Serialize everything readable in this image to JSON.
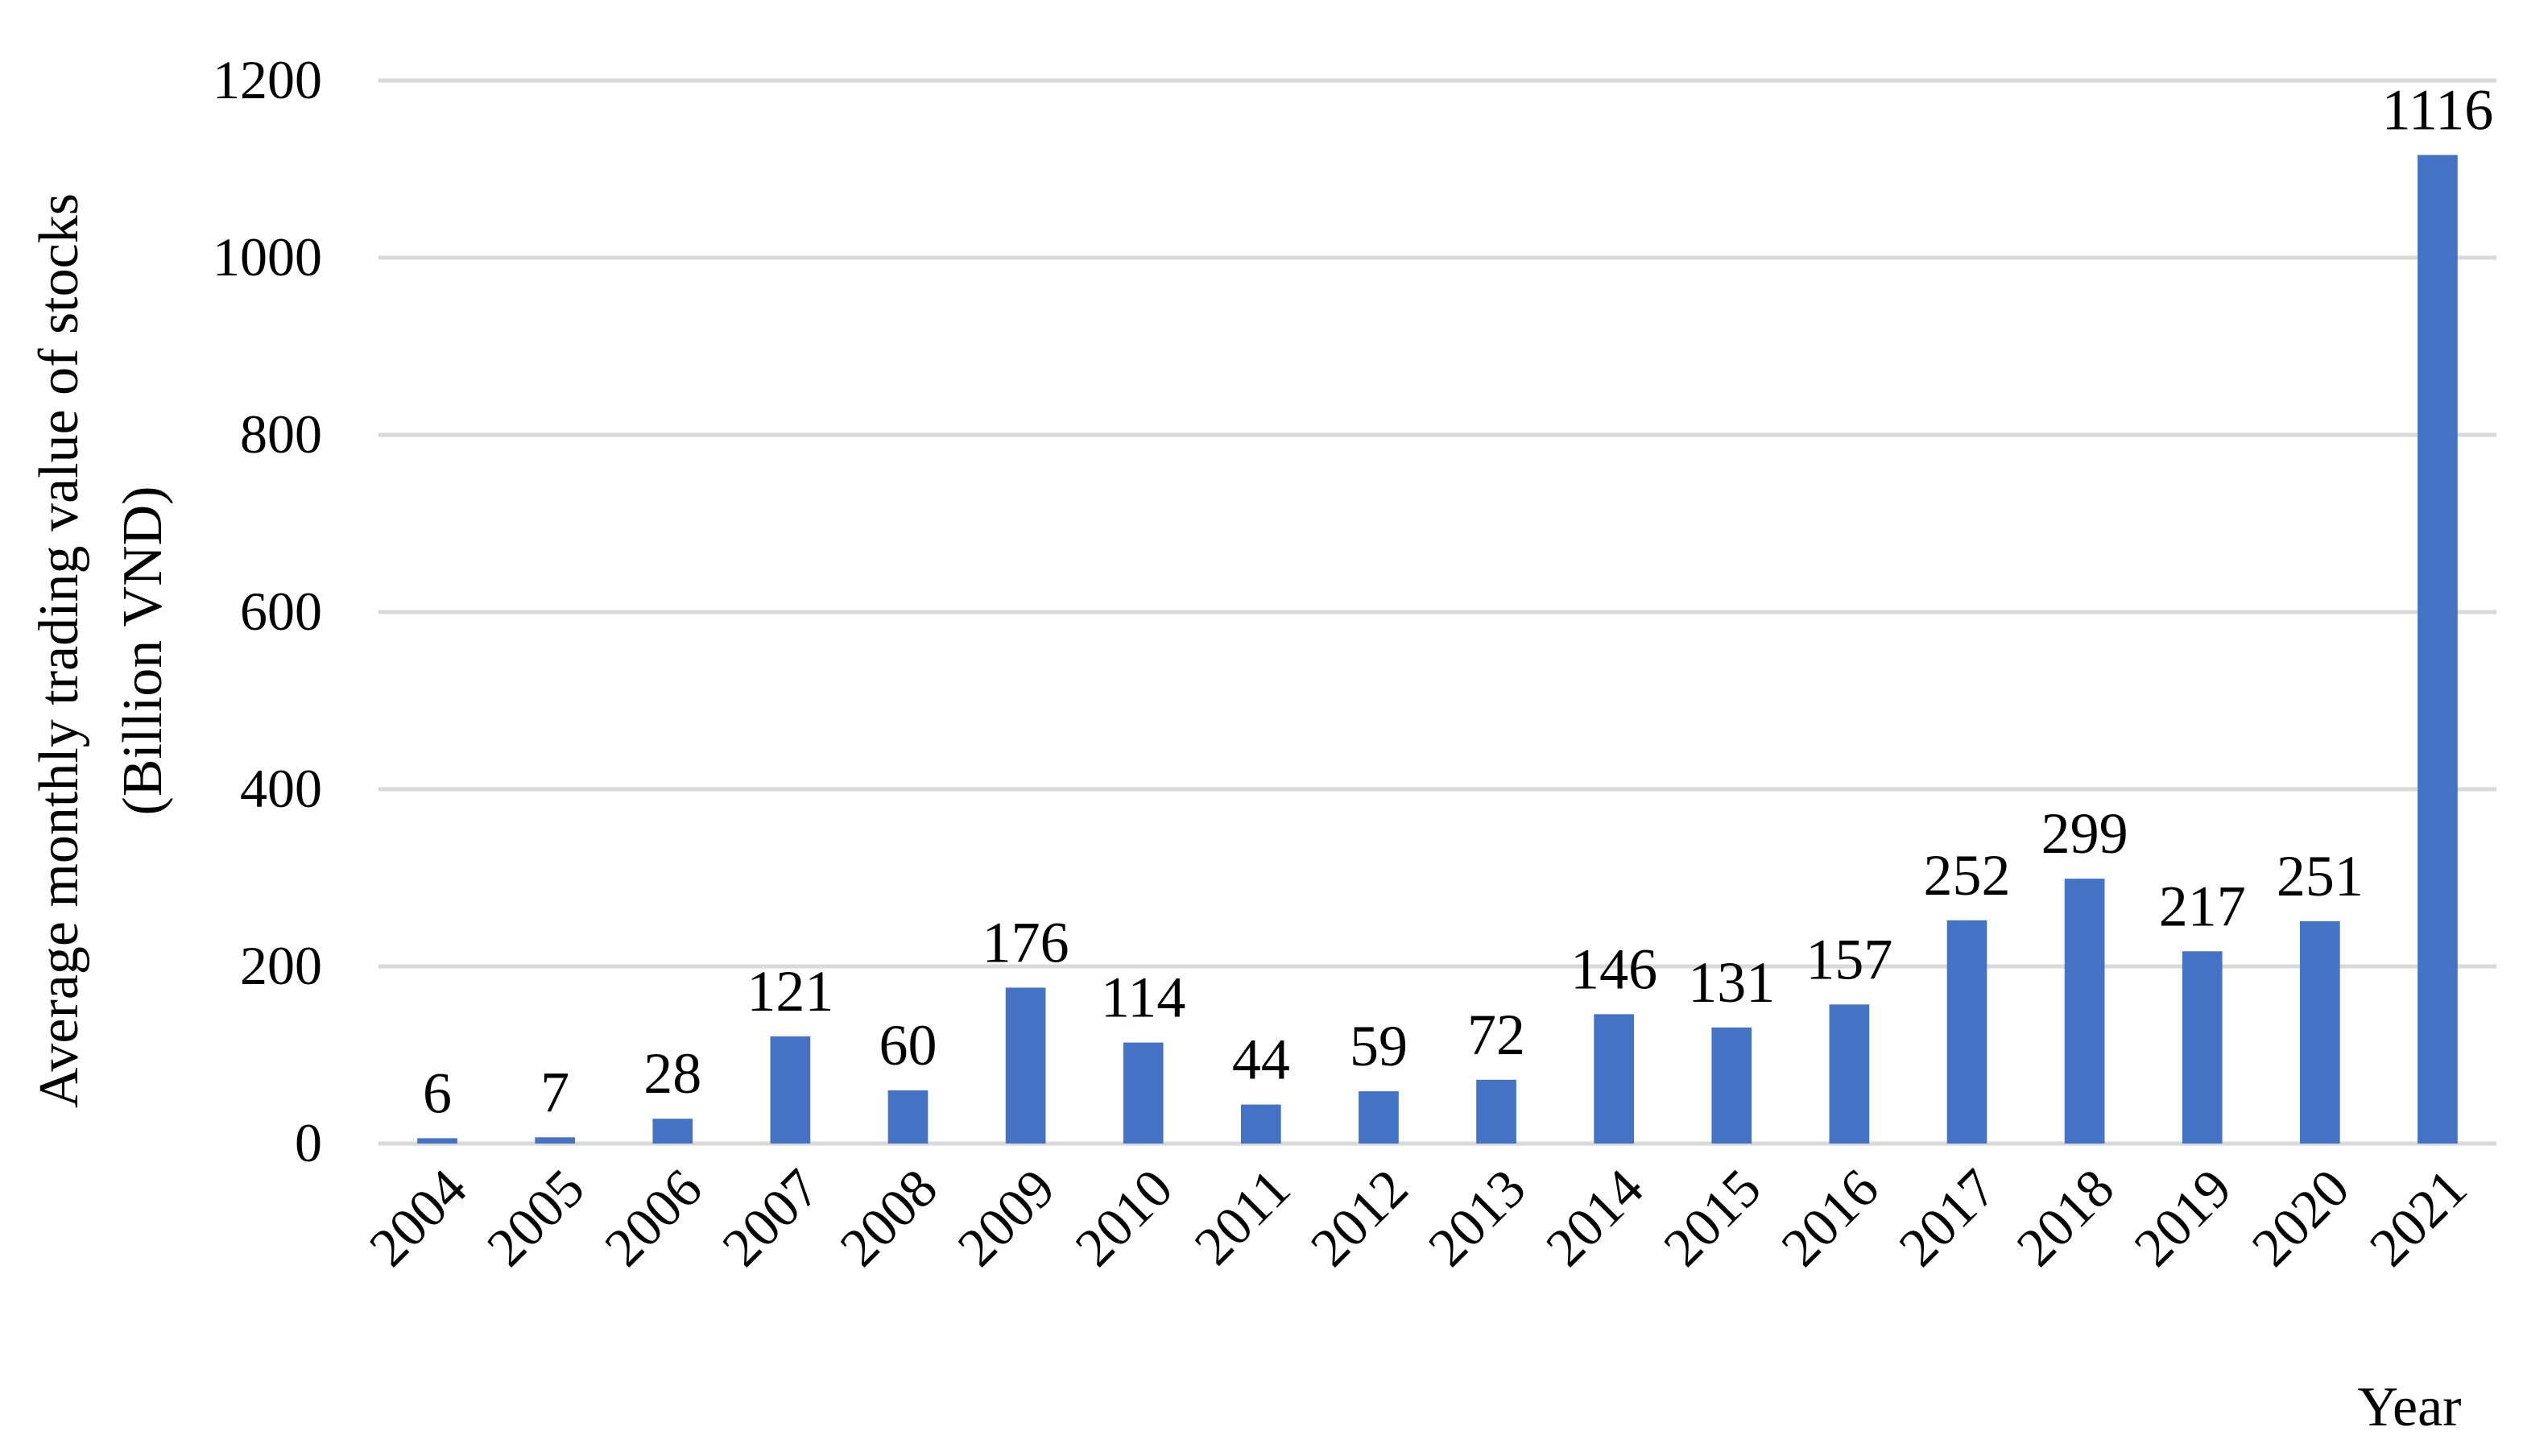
{
  "chart_data": {
    "type": "bar",
    "title": "",
    "xlabel": "Year",
    "ylabel_lines": [
      "Average monthly trading value of stocks",
      "(Billion VND)"
    ],
    "categories": [
      "2004",
      "2005",
      "2006",
      "2007",
      "2008",
      "2009",
      "2010",
      "2011",
      "2012",
      "2013",
      "2014",
      "2015",
      "2016",
      "2017",
      "2018",
      "2019",
      "2020",
      "2021"
    ],
    "values": [
      6,
      7,
      28,
      121,
      60,
      176,
      114,
      44,
      59,
      72,
      146,
      131,
      157,
      252,
      299,
      217,
      251,
      1116
    ],
    "ylim": [
      0,
      1200
    ],
    "yticks": [
      0,
      200,
      400,
      600,
      800,
      1000,
      1200
    ],
    "grid": true,
    "legend": "none",
    "bar_color": "#4472C4",
    "grid_color": "#D9D9D9",
    "data_labels": true
  }
}
